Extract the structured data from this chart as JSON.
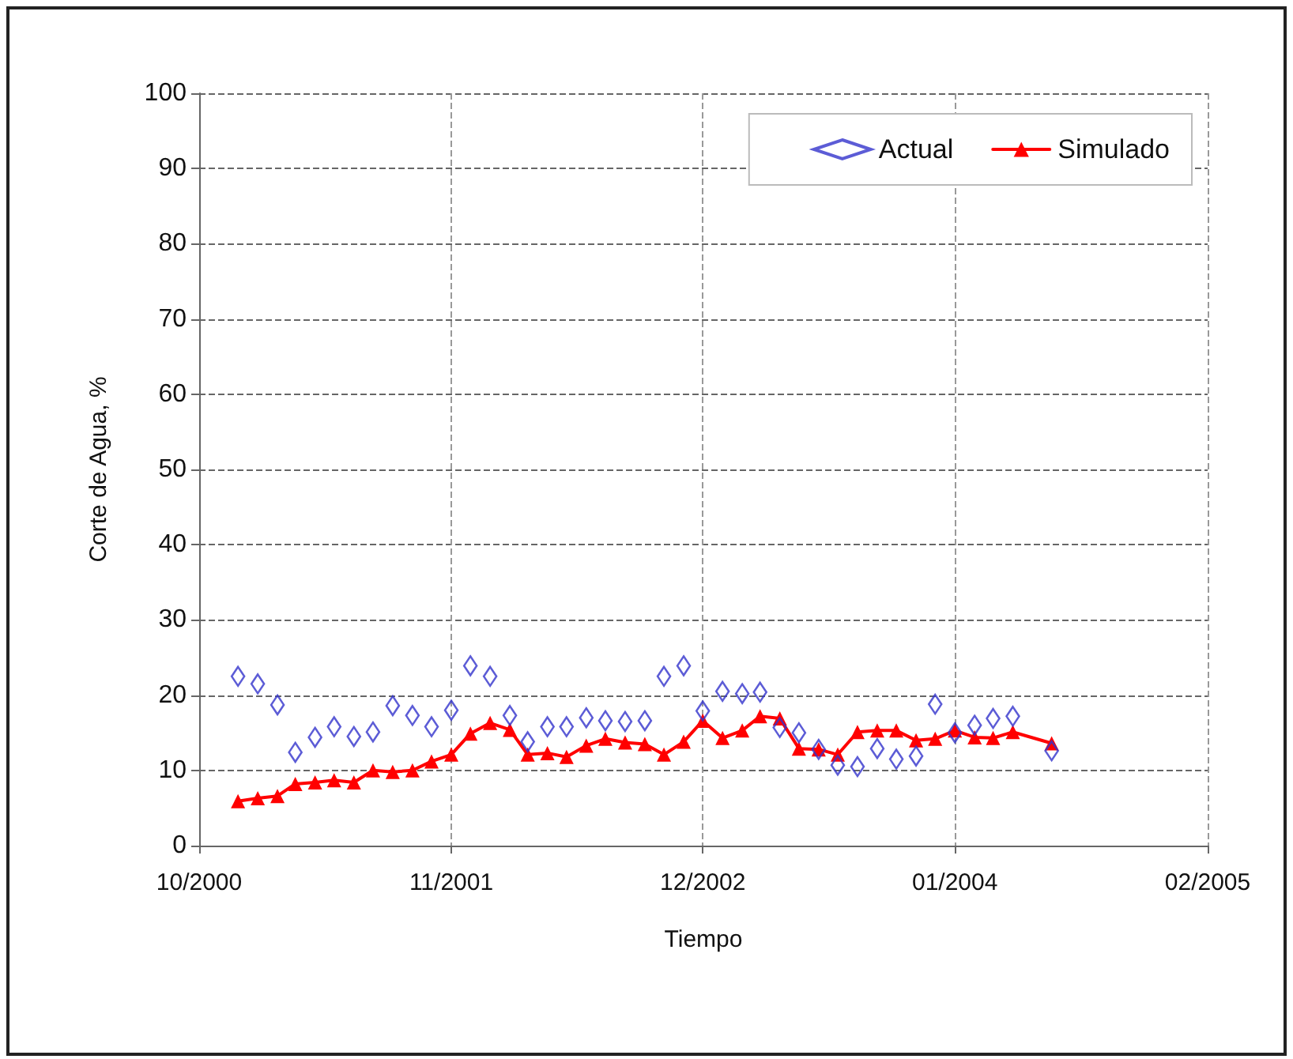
{
  "chart_data": {
    "type": "line",
    "xlabel": "Tiempo",
    "ylabel": "Corte de Agua, %",
    "x": [
      "2000-12",
      "2001-01",
      "2001-02",
      "2001-03",
      "2001-04",
      "2001-05",
      "2001-06",
      "2001-07",
      "2001-08",
      "2001-09",
      "2001-10",
      "2001-11",
      "2001-12",
      "2002-01",
      "2002-02",
      "2002-03",
      "2002-04",
      "2002-05",
      "2002-06",
      "2002-07",
      "2002-08",
      "2002-09",
      "2002-10",
      "2002-11",
      "2002-12",
      "2003-01",
      "2003-02",
      "2003-03",
      "2003-04",
      "2003-05",
      "2003-06",
      "2003-07",
      "2003-08",
      "2003-09",
      "2003-10",
      "2003-11",
      "2003-12",
      "2004-01",
      "2004-02",
      "2004-03",
      "2004-04",
      "2004-06"
    ],
    "series": [
      {
        "name": "Actual",
        "type": "scatter",
        "marker": "diamond",
        "color": "#3333cc",
        "values": [
          22.5,
          21.5,
          18.7,
          12.4,
          14.4,
          15.8,
          14.5,
          15.1,
          18.6,
          17.3,
          15.8,
          18.0,
          23.9,
          22.5,
          17.3,
          13.8,
          15.8,
          15.8,
          17.0,
          16.6,
          16.5,
          16.6,
          22.5,
          23.9,
          17.9,
          20.5,
          20.2,
          20.4,
          15.7,
          15.0,
          12.8,
          10.7,
          10.5,
          12.9,
          11.5,
          11.9,
          18.8,
          15.0,
          16.0,
          16.9,
          17.2,
          12.6
        ]
      },
      {
        "name": "Simulado",
        "marker": "triangle",
        "color": "#ff0000",
        "values": [
          5.9,
          6.3,
          6.6,
          8.2,
          8.4,
          8.7,
          8.4,
          10.0,
          9.8,
          10.0,
          11.2,
          12.1,
          14.9,
          16.3,
          15.4,
          12.1,
          12.3,
          11.8,
          13.3,
          14.2,
          13.7,
          13.5,
          12.1,
          13.8,
          16.6,
          14.3,
          15.3,
          17.2,
          16.9,
          12.9,
          12.8,
          12.1,
          15.1,
          15.3,
          15.3,
          14.0,
          14.2,
          15.3,
          14.4,
          14.3,
          15.1,
          13.6
        ]
      }
    ],
    "xlim": [
      "2000-10",
      "2005-02"
    ],
    "xticks": [
      {
        "value": "2000-10",
        "label": "10/2000"
      },
      {
        "value": "2001-11",
        "label": "11/2001"
      },
      {
        "value": "2002-12",
        "label": "12/2002"
      },
      {
        "value": "2004-01",
        "label": "01/2004"
      },
      {
        "value": "2005-02",
        "label": "02/2005"
      }
    ],
    "ylim": [
      0,
      100
    ],
    "yticks": [
      0,
      10,
      20,
      30,
      40,
      50,
      60,
      70,
      80,
      90,
      100
    ],
    "grid": true,
    "legend": "top right",
    "line_style": "solid"
  }
}
